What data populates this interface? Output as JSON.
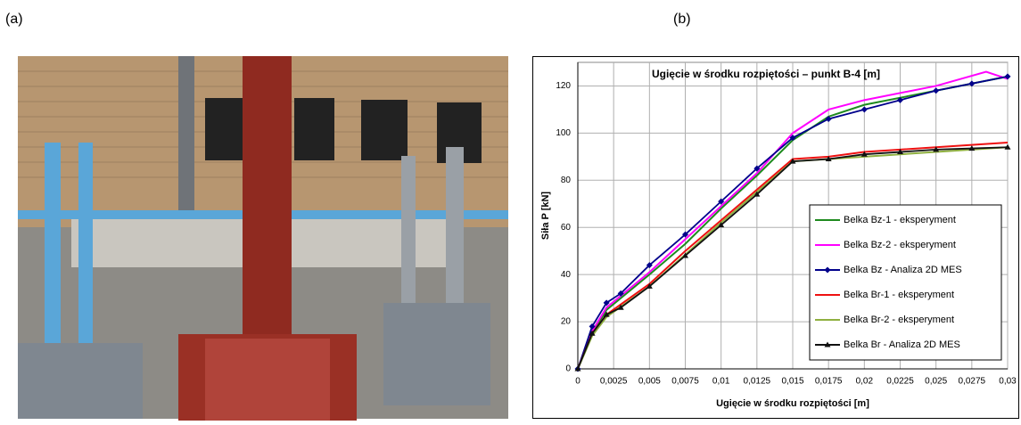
{
  "panel_labels": [
    "(a)",
    "(b)"
  ],
  "chart_data": {
    "type": "line",
    "title": "Ugięcie w środku rozpiętości – punkt  B-4   [m]",
    "x_label": "Ugięcie w środku rozpiętości [m]",
    "y_label": "Siła P [kN]",
    "xlim": [
      0,
      0.03
    ],
    "ylim": [
      0,
      130
    ],
    "xticks": [
      0,
      {
        "value": 0.0025,
        "label": "0,0025"
      },
      {
        "value": 0.005,
        "label": "0,005"
      },
      {
        "value": 0.0075,
        "label": "0,0075"
      },
      {
        "value": 0.01,
        "label": "0,01"
      },
      {
        "value": 0.0125,
        "label": "0,0125"
      },
      {
        "value": 0.015,
        "label": "0,015"
      },
      {
        "value": 0.0175,
        "label": "0,0175"
      },
      {
        "value": 0.02,
        "label": "0,02"
      },
      {
        "value": 0.0225,
        "label": "0,0225"
      },
      {
        "value": 0.025,
        "label": "0,025"
      },
      {
        "value": 0.0275,
        "label": "0,0275"
      },
      {
        "value": 0.03,
        "label": "0,03"
      }
    ],
    "yticks": [
      0,
      20,
      40,
      60,
      80,
      100,
      120
    ],
    "grid": true,
    "legend": "right",
    "series": [
      {
        "name": "Belka Bz-1 - eksperyment",
        "color": "#1e8a1e",
        "marker": "none",
        "x": [
          0,
          0.001,
          0.002,
          0.005,
          0.0075,
          0.01,
          0.0125,
          0.015,
          0.0175,
          0.02,
          0.025,
          0.03
        ],
        "values": [
          0,
          15,
          25,
          40,
          53,
          68,
          82,
          97,
          107,
          112,
          118,
          124
        ]
      },
      {
        "name": "Belka Bz-2 - eksperyment",
        "color": "#ff00ff",
        "marker": "none",
        "x": [
          0,
          0.001,
          0.002,
          0.005,
          0.01,
          0.0125,
          0.015,
          0.0175,
          0.02,
          0.025,
          0.0285,
          0.03
        ],
        "values": [
          0,
          16,
          26,
          41,
          69,
          83,
          100,
          110,
          114,
          120,
          126,
          123
        ]
      },
      {
        "name": "Belka Bz - Analiza 2D MES",
        "color": "#00008b",
        "marker": "diamond",
        "x": [
          0,
          0.001,
          0.002,
          0.003,
          0.005,
          0.0075,
          0.01,
          0.0125,
          0.015,
          0.0175,
          0.02,
          0.0225,
          0.025,
          0.0275,
          0.03
        ],
        "values": [
          0,
          18,
          28,
          32,
          44,
          57,
          71,
          85,
          98,
          106,
          110,
          114,
          118,
          121,
          124
        ]
      },
      {
        "name": "Belka Br-1 - eksperyment",
        "color": "#ee1111",
        "marker": "none",
        "x": [
          0,
          0.001,
          0.002,
          0.005,
          0.0075,
          0.01,
          0.0125,
          0.015,
          0.0175,
          0.02,
          0.025,
          0.03
        ],
        "values": [
          0,
          15,
          23,
          36,
          50,
          63,
          76,
          89,
          90,
          92,
          94,
          96
        ]
      },
      {
        "name": "Belka Br-2 - eksperyment",
        "color": "#8fb040",
        "marker": "none",
        "x": [
          0,
          0.001,
          0.002,
          0.005,
          0.01,
          0.015,
          0.02,
          0.025,
          0.03
        ],
        "values": [
          0,
          14,
          22,
          35,
          62,
          88,
          90,
          92,
          94
        ]
      },
      {
        "name": "Belka Br - Analiza 2D MES",
        "color": "#111111",
        "marker": "triangle",
        "x": [
          0,
          0.001,
          0.002,
          0.003,
          0.005,
          0.0075,
          0.01,
          0.0125,
          0.015,
          0.0175,
          0.02,
          0.0225,
          0.025,
          0.0275,
          0.03
        ],
        "values": [
          0,
          15,
          23,
          26,
          35,
          48,
          61,
          74,
          88,
          89,
          91,
          92,
          93,
          93.5,
          94
        ]
      }
    ]
  }
}
